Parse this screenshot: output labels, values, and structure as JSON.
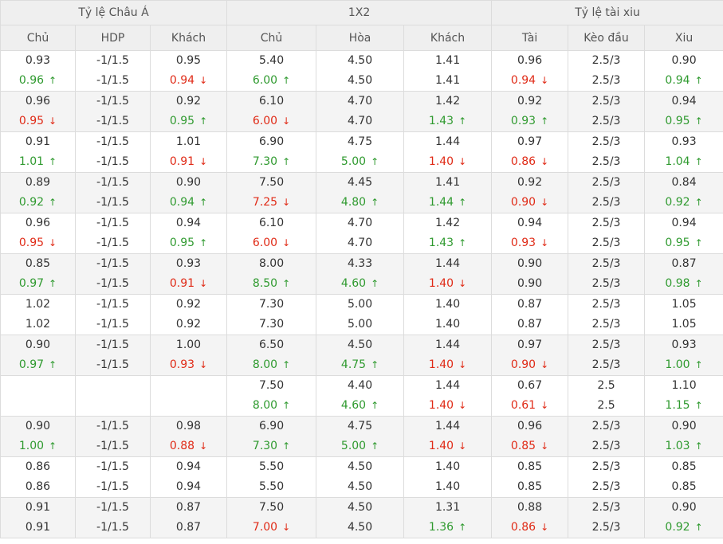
{
  "headers": {
    "groups": [
      "Tỷ lệ Châu Á",
      "1X2",
      "Tỷ lệ tài xiu"
    ],
    "columns": [
      "Chủ",
      "HDP",
      "Khách",
      "Chủ",
      "Hòa",
      "Khách",
      "Tài",
      "Kèo đầu",
      "Xiu"
    ]
  },
  "icons": {
    "up": "arrow-up-icon",
    "down": "arrow-down-icon",
    "up_glyph": "↑",
    "down_glyph": "↓"
  },
  "colors": {
    "up": "#2f9a2f",
    "down": "#e02a16"
  },
  "rows": [
    [
      [
        "0.93",
        "0.96",
        "up"
      ],
      [
        "-1/1.5",
        "-1/1.5",
        ""
      ],
      [
        "0.95",
        "0.94",
        "down"
      ],
      [
        "5.40",
        "6.00",
        "up"
      ],
      [
        "4.50",
        "4.50",
        ""
      ],
      [
        "1.41",
        "1.41",
        ""
      ],
      [
        "0.96",
        "0.94",
        "down"
      ],
      [
        "2.5/3",
        "2.5/3",
        ""
      ],
      [
        "0.90",
        "0.94",
        "up"
      ]
    ],
    [
      [
        "0.96",
        "0.95",
        "down"
      ],
      [
        "-1/1.5",
        "-1/1.5",
        ""
      ],
      [
        "0.92",
        "0.95",
        "up"
      ],
      [
        "6.10",
        "6.00",
        "down"
      ],
      [
        "4.70",
        "4.70",
        ""
      ],
      [
        "1.42",
        "1.43",
        "up"
      ],
      [
        "0.92",
        "0.93",
        "up"
      ],
      [
        "2.5/3",
        "2.5/3",
        ""
      ],
      [
        "0.94",
        "0.95",
        "up"
      ]
    ],
    [
      [
        "0.91",
        "1.01",
        "up"
      ],
      [
        "-1/1.5",
        "-1/1.5",
        ""
      ],
      [
        "1.01",
        "0.91",
        "down"
      ],
      [
        "6.90",
        "7.30",
        "up"
      ],
      [
        "4.75",
        "5.00",
        "up"
      ],
      [
        "1.44",
        "1.40",
        "down"
      ],
      [
        "0.97",
        "0.86",
        "down"
      ],
      [
        "2.5/3",
        "2.5/3",
        ""
      ],
      [
        "0.93",
        "1.04",
        "up"
      ]
    ],
    [
      [
        "0.89",
        "0.92",
        "up"
      ],
      [
        "-1/1.5",
        "-1/1.5",
        ""
      ],
      [
        "0.90",
        "0.94",
        "up"
      ],
      [
        "7.50",
        "7.25",
        "down"
      ],
      [
        "4.45",
        "4.80",
        "up"
      ],
      [
        "1.41",
        "1.44",
        "up"
      ],
      [
        "0.92",
        "0.90",
        "down"
      ],
      [
        "2.5/3",
        "2.5/3",
        ""
      ],
      [
        "0.84",
        "0.92",
        "up"
      ]
    ],
    [
      [
        "0.96",
        "0.95",
        "down"
      ],
      [
        "-1/1.5",
        "-1/1.5",
        ""
      ],
      [
        "0.94",
        "0.95",
        "up"
      ],
      [
        "6.10",
        "6.00",
        "down"
      ],
      [
        "4.70",
        "4.70",
        ""
      ],
      [
        "1.42",
        "1.43",
        "up"
      ],
      [
        "0.94",
        "0.93",
        "down"
      ],
      [
        "2.5/3",
        "2.5/3",
        ""
      ],
      [
        "0.94",
        "0.95",
        "up"
      ]
    ],
    [
      [
        "0.85",
        "0.97",
        "up"
      ],
      [
        "-1/1.5",
        "-1/1.5",
        ""
      ],
      [
        "0.93",
        "0.91",
        "down"
      ],
      [
        "8.00",
        "8.50",
        "up"
      ],
      [
        "4.33",
        "4.60",
        "up"
      ],
      [
        "1.44",
        "1.40",
        "down"
      ],
      [
        "0.90",
        "0.90",
        ""
      ],
      [
        "2.5/3",
        "2.5/3",
        ""
      ],
      [
        "0.87",
        "0.98",
        "up"
      ]
    ],
    [
      [
        "1.02",
        "1.02",
        ""
      ],
      [
        "-1/1.5",
        "-1/1.5",
        ""
      ],
      [
        "0.92",
        "0.92",
        ""
      ],
      [
        "7.30",
        "7.30",
        ""
      ],
      [
        "5.00",
        "5.00",
        ""
      ],
      [
        "1.40",
        "1.40",
        ""
      ],
      [
        "0.87",
        "0.87",
        ""
      ],
      [
        "2.5/3",
        "2.5/3",
        ""
      ],
      [
        "1.05",
        "1.05",
        ""
      ]
    ],
    [
      [
        "0.90",
        "0.97",
        "up"
      ],
      [
        "-1/1.5",
        "-1/1.5",
        ""
      ],
      [
        "1.00",
        "0.93",
        "down"
      ],
      [
        "6.50",
        "8.00",
        "up"
      ],
      [
        "4.50",
        "4.75",
        "up"
      ],
      [
        "1.44",
        "1.40",
        "down"
      ],
      [
        "0.97",
        "0.90",
        "down"
      ],
      [
        "2.5/3",
        "2.5/3",
        ""
      ],
      [
        "0.93",
        "1.00",
        "up"
      ]
    ],
    [
      [
        "",
        "",
        ""
      ],
      [
        "",
        "",
        ""
      ],
      [
        "",
        "",
        ""
      ],
      [
        "7.50",
        "8.00",
        "up"
      ],
      [
        "4.40",
        "4.60",
        "up"
      ],
      [
        "1.44",
        "1.40",
        "down"
      ],
      [
        "0.67",
        "0.61",
        "down"
      ],
      [
        "2.5",
        "2.5",
        ""
      ],
      [
        "1.10",
        "1.15",
        "up"
      ]
    ],
    [
      [
        "0.90",
        "1.00",
        "up"
      ],
      [
        "-1/1.5",
        "-1/1.5",
        ""
      ],
      [
        "0.98",
        "0.88",
        "down"
      ],
      [
        "6.90",
        "7.30",
        "up"
      ],
      [
        "4.75",
        "5.00",
        "up"
      ],
      [
        "1.44",
        "1.40",
        "down"
      ],
      [
        "0.96",
        "0.85",
        "down"
      ],
      [
        "2.5/3",
        "2.5/3",
        ""
      ],
      [
        "0.90",
        "1.03",
        "up"
      ]
    ],
    [
      [
        "0.86",
        "0.86",
        ""
      ],
      [
        "-1/1.5",
        "-1/1.5",
        ""
      ],
      [
        "0.94",
        "0.94",
        ""
      ],
      [
        "5.50",
        "5.50",
        ""
      ],
      [
        "4.50",
        "4.50",
        ""
      ],
      [
        "1.40",
        "1.40",
        ""
      ],
      [
        "0.85",
        "0.85",
        ""
      ],
      [
        "2.5/3",
        "2.5/3",
        ""
      ],
      [
        "0.85",
        "0.85",
        ""
      ]
    ],
    [
      [
        "0.91",
        "0.91",
        ""
      ],
      [
        "-1/1.5",
        "-1/1.5",
        ""
      ],
      [
        "0.87",
        "0.87",
        ""
      ],
      [
        "7.50",
        "7.00",
        "down"
      ],
      [
        "4.50",
        "4.50",
        ""
      ],
      [
        "1.31",
        "1.36",
        "up"
      ],
      [
        "0.88",
        "0.86",
        "down"
      ],
      [
        "2.5/3",
        "2.5/3",
        ""
      ],
      [
        "0.90",
        "0.92",
        "up"
      ]
    ]
  ]
}
